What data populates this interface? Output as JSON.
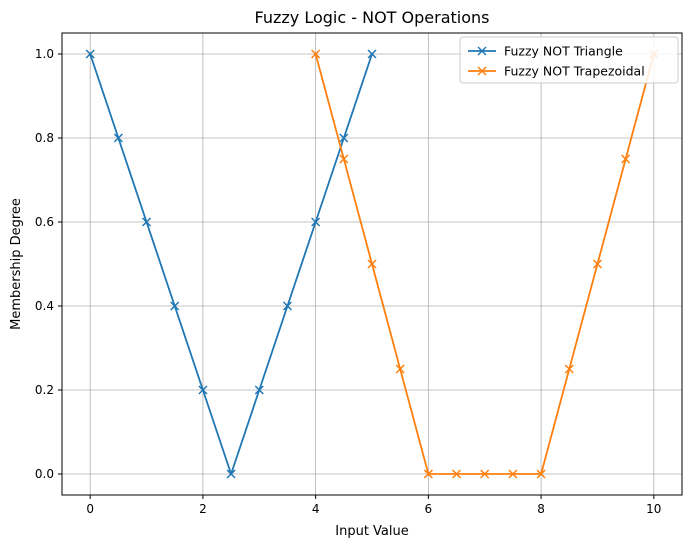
{
  "chart_data": {
    "type": "line",
    "title": "Fuzzy Logic - NOT Operations",
    "xlabel": "Input Value",
    "ylabel": "Membership Degree",
    "xlim": [
      -0.5,
      10.5
    ],
    "ylim": [
      -0.05,
      1.05
    ],
    "xticks": [
      0,
      2,
      4,
      6,
      8,
      10
    ],
    "yticks": [
      0.0,
      0.2,
      0.4,
      0.6,
      0.8,
      1.0
    ],
    "xtick_labels": [
      "0",
      "2",
      "4",
      "6",
      "8",
      "10"
    ],
    "ytick_labels": [
      "0.0",
      "0.2",
      "0.4",
      "0.6",
      "0.8",
      "1.0"
    ],
    "grid": true,
    "legend_position": "top-right",
    "series": [
      {
        "name": "Fuzzy NOT Triangle",
        "color": "#1f77b4",
        "marker": "x",
        "x": [
          0,
          0.5,
          1,
          1.5,
          2,
          2.5,
          3,
          3.5,
          4,
          4.5,
          5
        ],
        "y": [
          1.0,
          0.8,
          0.6,
          0.4,
          0.2,
          0.0,
          0.2,
          0.4,
          0.6,
          0.8,
          1.0
        ]
      },
      {
        "name": "Fuzzy NOT Trapezoidal",
        "color": "#ff7f0e",
        "marker": "x",
        "x": [
          4,
          4.5,
          5,
          5.5,
          6,
          6.5,
          7,
          7.5,
          8,
          8.5,
          9,
          9.5,
          10
        ],
        "y": [
          1.0,
          0.75,
          0.5,
          0.25,
          0.0,
          0.0,
          0.0,
          0.0,
          0.0,
          0.25,
          0.5,
          0.75,
          1.0
        ]
      }
    ]
  }
}
